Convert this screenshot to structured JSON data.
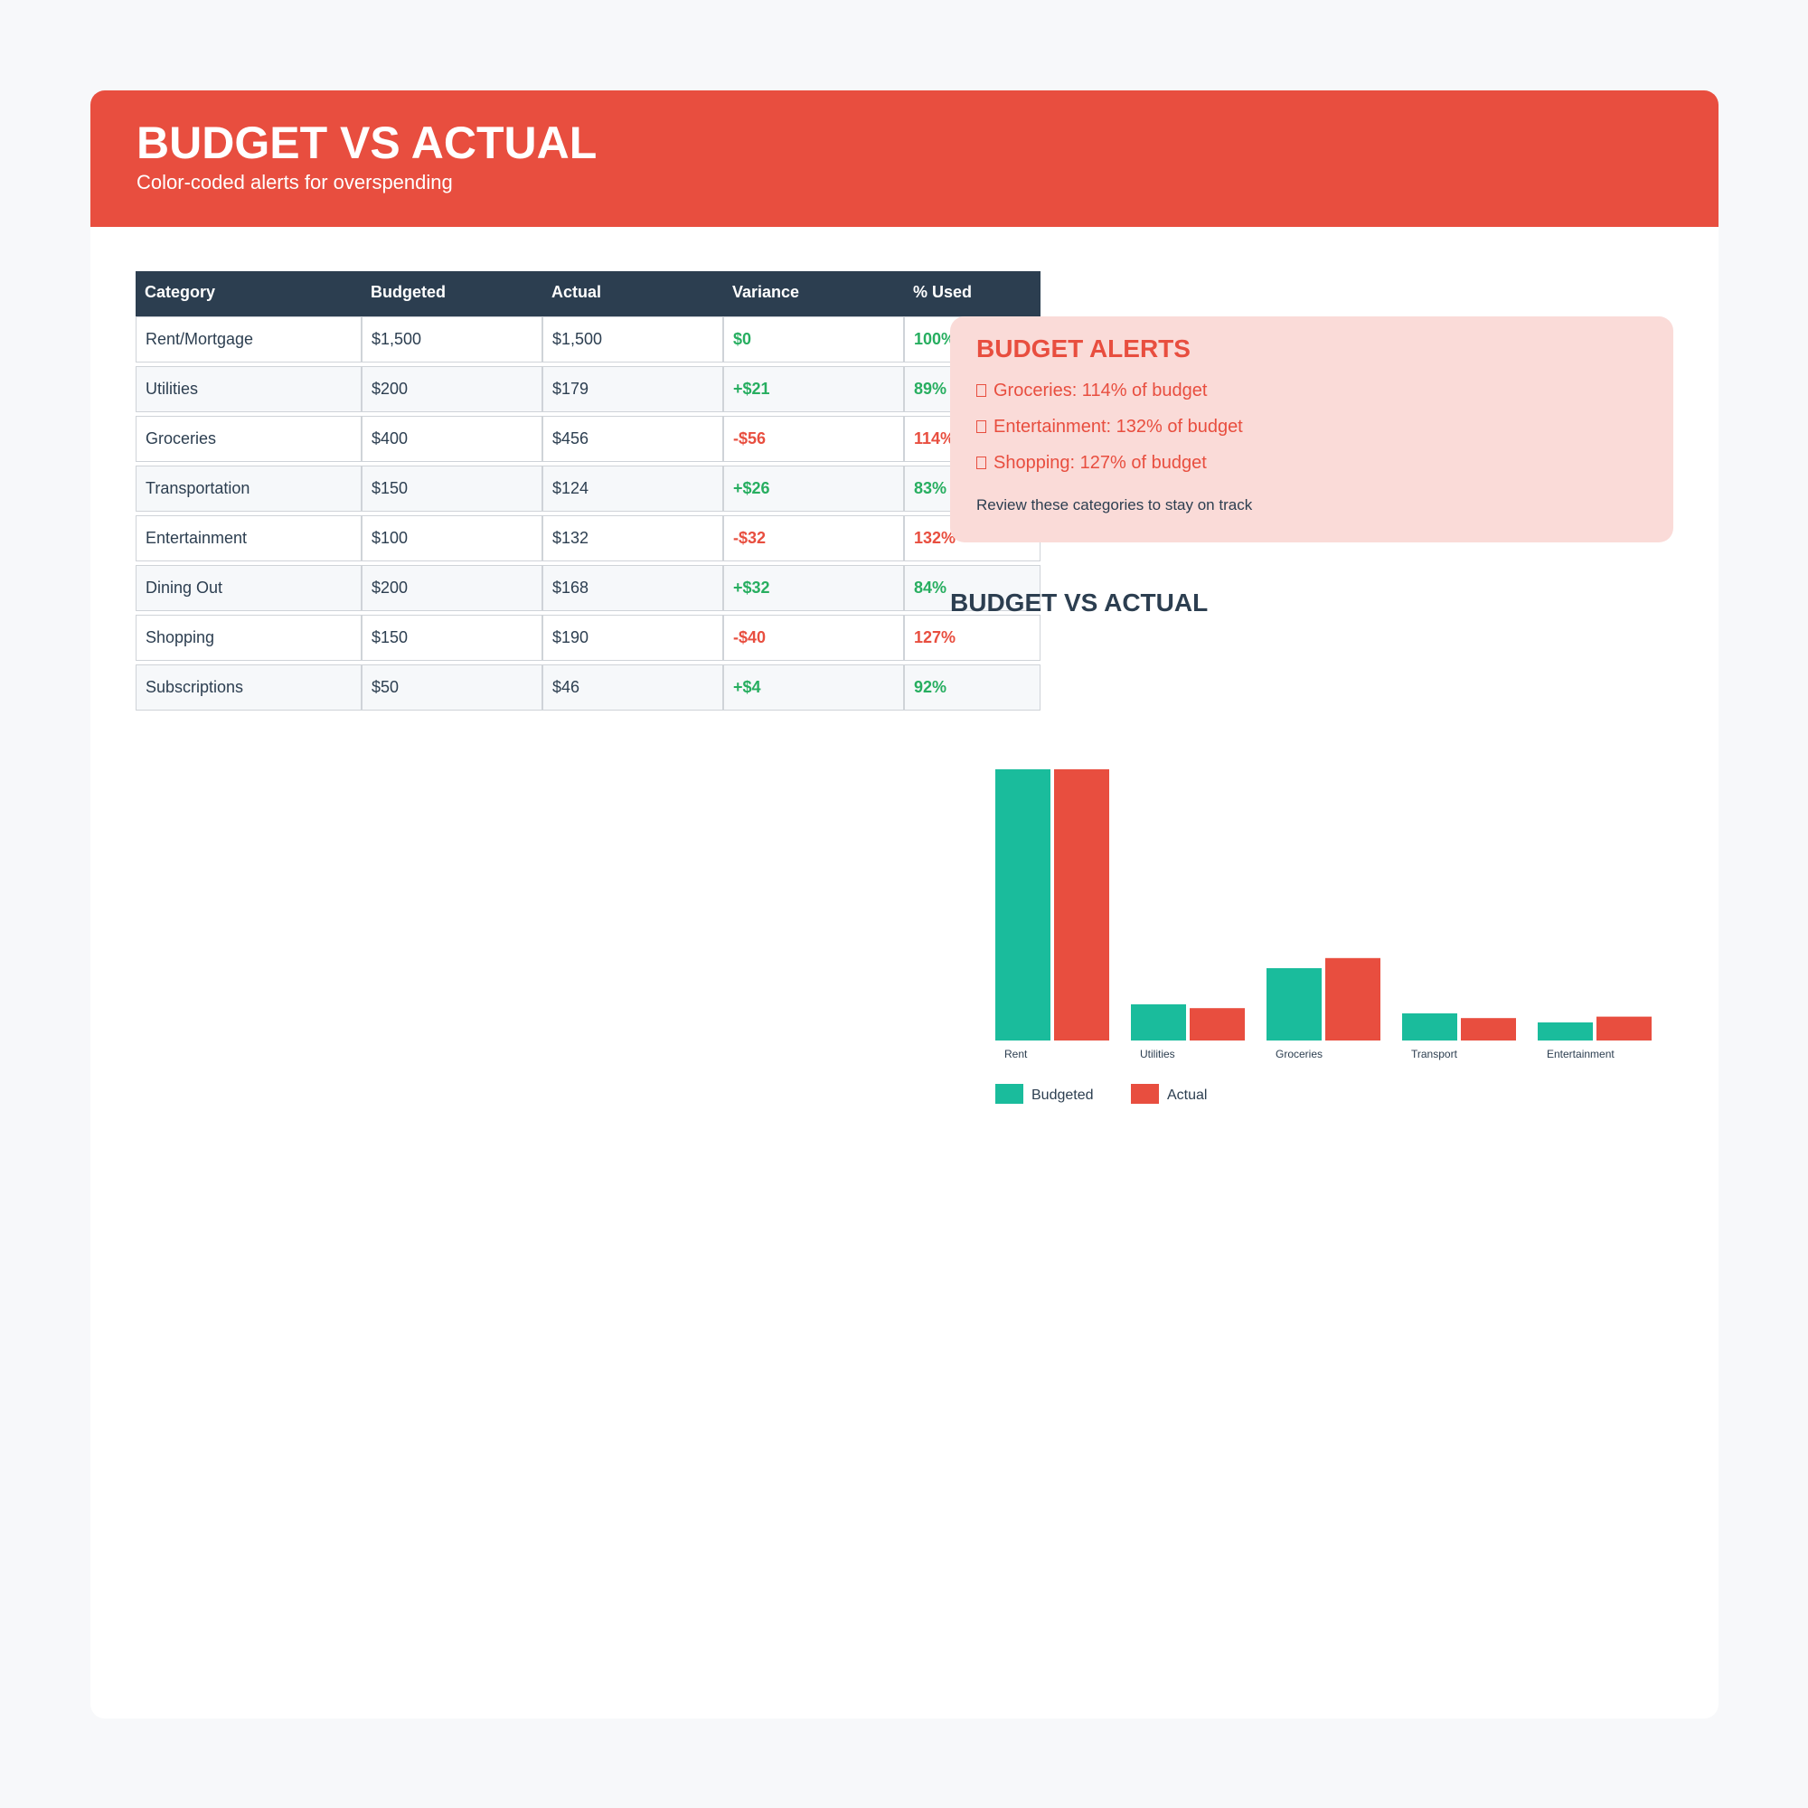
{
  "header": {
    "title": "BUDGET VS ACTUAL",
    "subtitle": "Color-coded alerts for overspending"
  },
  "colors": {
    "header_bg": "#e84e3f",
    "table_head_bg": "#2c3e50",
    "positive": "#27ae60",
    "negative": "#e84e3f",
    "budgeted_bar": "#1abc9c",
    "actual_bar": "#e84e3f",
    "alert_bg": "#fadbd8"
  },
  "table": {
    "headers": [
      "Category",
      "Budgeted",
      "Actual",
      "Variance",
      "% Used"
    ],
    "rows": [
      {
        "category": "Rent/Mortgage",
        "budgeted": "$1,500",
        "actual": "$1,500",
        "variance": "$0",
        "used": "100%",
        "status": "ok"
      },
      {
        "category": "Utilities",
        "budgeted": "$200",
        "actual": "$179",
        "variance": "+$21",
        "used": "89%",
        "status": "ok"
      },
      {
        "category": "Groceries",
        "budgeted": "$400",
        "actual": "$456",
        "variance": "-$56",
        "used": "114%",
        "status": "over"
      },
      {
        "category": "Transportation",
        "budgeted": "$150",
        "actual": "$124",
        "variance": "+$26",
        "used": "83%",
        "status": "ok"
      },
      {
        "category": "Entertainment",
        "budgeted": "$100",
        "actual": "$132",
        "variance": "-$32",
        "used": "132%",
        "status": "over"
      },
      {
        "category": "Dining Out",
        "budgeted": "$200",
        "actual": "$168",
        "variance": "+$32",
        "used": "84%",
        "status": "ok"
      },
      {
        "category": "Shopping",
        "budgeted": "$150",
        "actual": "$190",
        "variance": "-$40",
        "used": "127%",
        "status": "over"
      },
      {
        "category": "Subscriptions",
        "budgeted": "$50",
        "actual": "$46",
        "variance": "+$4",
        "used": "92%",
        "status": "ok"
      }
    ]
  },
  "alerts": {
    "title": "BUDGET ALERTS",
    "items": [
      "Groceries: 114% of budget",
      "Entertainment: 132% of budget",
      "Shopping: 127% of budget"
    ],
    "note": "Review these categories to stay on track",
    "icon": "warning-icon"
  },
  "chart_data": {
    "type": "bar",
    "title": "BUDGET VS ACTUAL",
    "categories": [
      "Rent",
      "Utilities",
      "Groceries",
      "Transport",
      "Entertainment"
    ],
    "series": [
      {
        "name": "Budgeted",
        "values": [
          1500,
          200,
          400,
          150,
          100
        ],
        "color": "#1abc9c"
      },
      {
        "name": "Actual",
        "values": [
          1500,
          179,
          456,
          124,
          132
        ],
        "color": "#e84e3f"
      }
    ],
    "xlabel": "",
    "ylabel": "",
    "ylim": [
      0,
      1500
    ],
    "grid": false,
    "legend": "bottom-left"
  }
}
